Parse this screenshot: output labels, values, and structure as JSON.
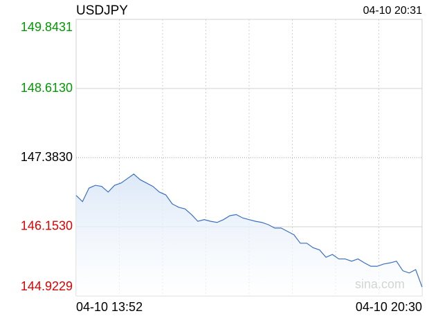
{
  "chart_data": {
    "type": "line",
    "title": "USDJPY",
    "timestamp": "04-10 20:31",
    "watermark": "sina.com",
    "categories": [
      "04-10 13:52",
      null,
      null,
      null,
      null,
      null,
      null,
      null,
      null,
      null,
      null,
      null,
      null,
      null,
      null,
      null,
      null,
      null,
      null,
      null,
      null,
      null,
      null,
      null,
      null,
      null,
      null,
      null,
      null,
      null,
      null,
      null,
      null,
      null,
      null,
      null,
      null,
      null,
      null,
      null,
      null,
      null,
      null,
      null,
      null,
      null,
      null,
      null,
      null,
      null,
      null,
      null,
      null,
      null,
      "04-10 20:30"
    ],
    "series": [
      {
        "name": "USDJPY",
        "color": "#3a6fc0",
        "values": [
          146.71,
          146.6,
          146.84,
          146.89,
          146.87,
          146.77,
          146.89,
          146.93,
          147.01,
          147.09,
          146.99,
          146.93,
          146.87,
          146.77,
          146.72,
          146.56,
          146.5,
          146.47,
          146.37,
          146.25,
          146.28,
          146.25,
          146.23,
          146.28,
          146.35,
          146.37,
          146.31,
          146.28,
          146.25,
          146.23,
          146.19,
          146.13,
          146.13,
          146.07,
          146.01,
          145.86,
          145.86,
          145.78,
          145.74,
          145.61,
          145.66,
          145.58,
          145.58,
          145.54,
          145.58,
          145.51,
          145.45,
          145.45,
          145.49,
          145.51,
          145.54,
          145.37,
          145.33,
          145.39,
          145.08
        ]
      }
    ],
    "ylim": [
      144.9229,
      149.8431
    ],
    "yticks": [
      144.9229,
      {
        "value": 146.153,
        "label": "146.1530"
      },
      {
        "value": 147.383,
        "label": "147.3830"
      },
      {
        "value": 148.613,
        "label": "148.6130"
      },
      149.8431
    ],
    "up_color": "#009900",
    "down_color": "#dd0000",
    "grid": true
  }
}
